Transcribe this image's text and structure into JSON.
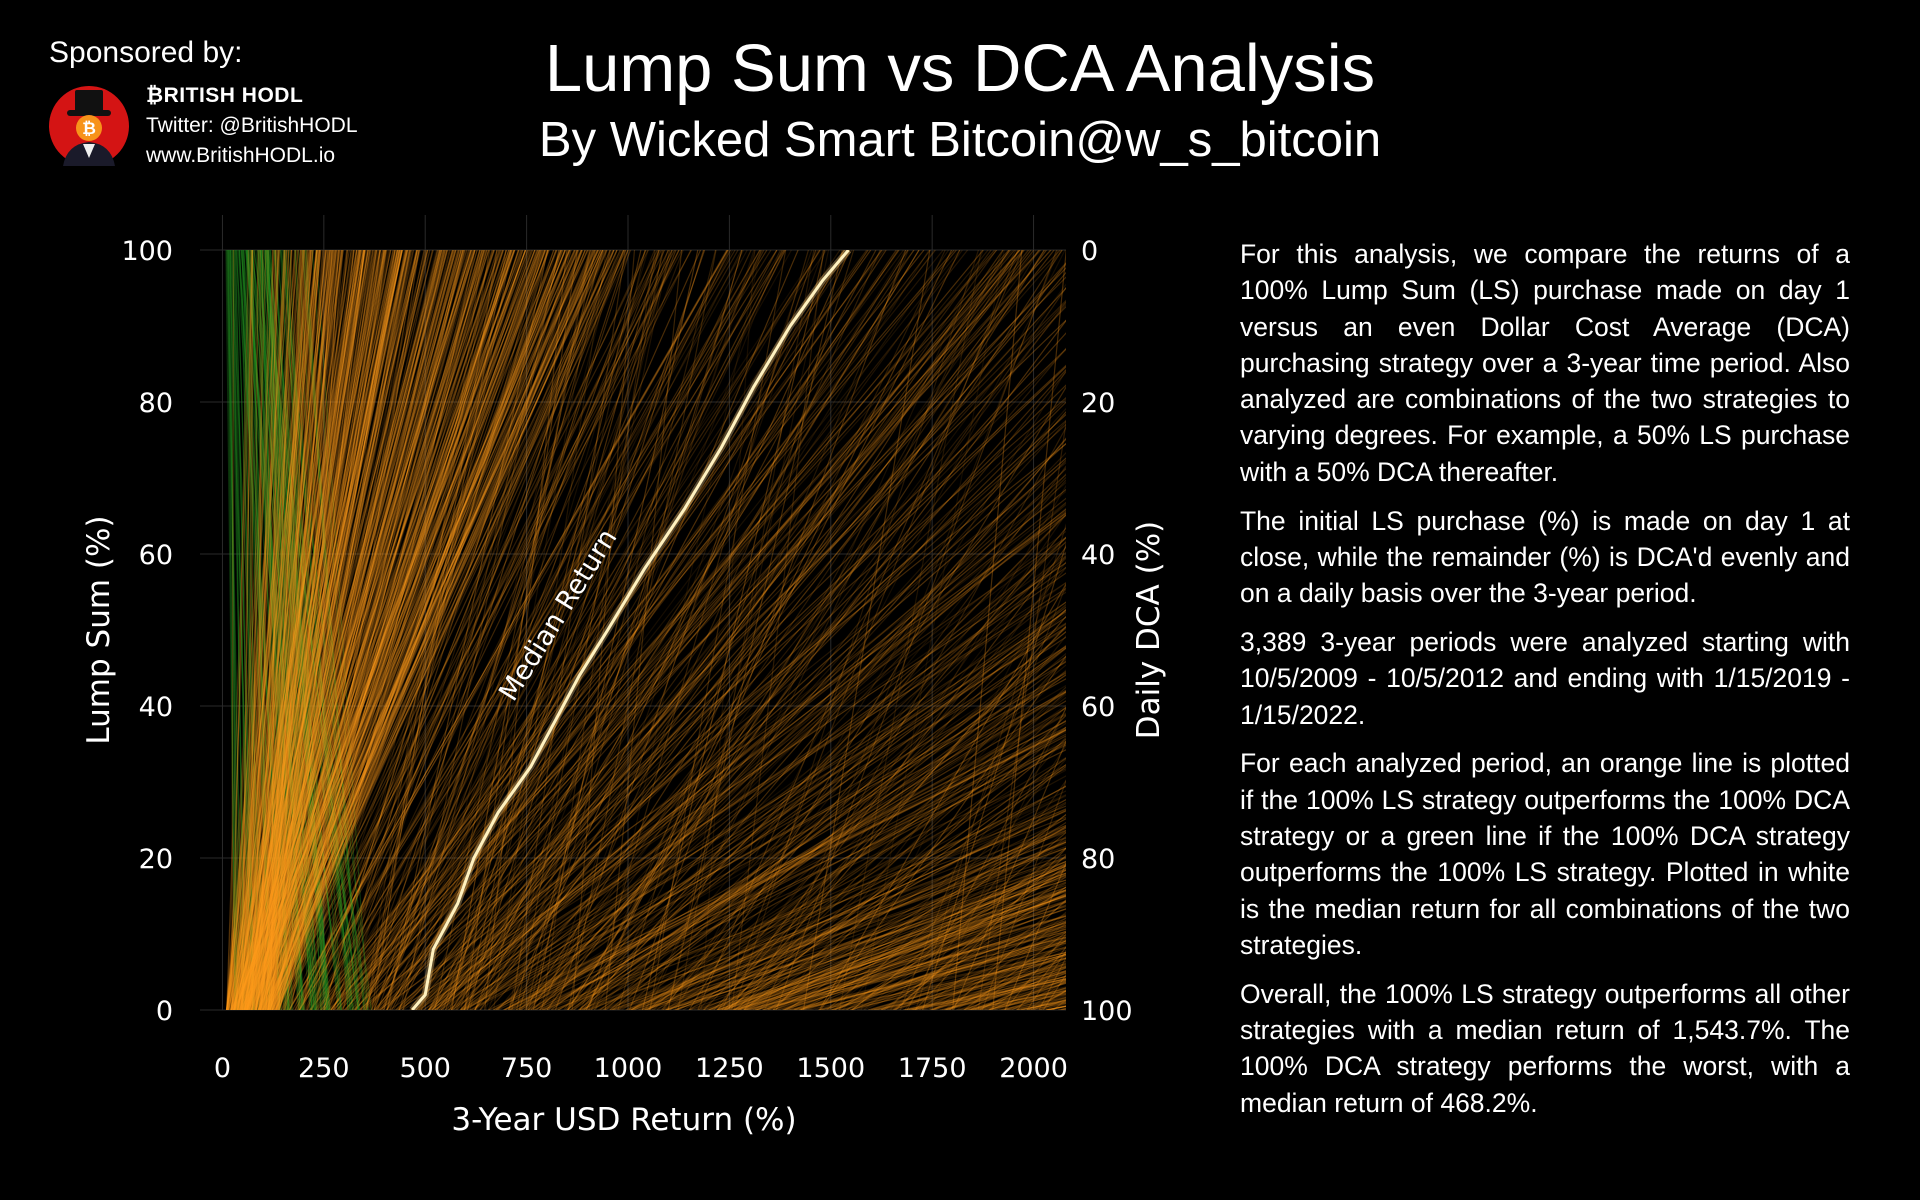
{
  "sponsor": {
    "label": "Sponsored by:",
    "name": "₿RITISH HODL",
    "twitter": "Twitter: @BritishHODL",
    "website": "www.BritishHODL.io",
    "logo_icon": "top-hat-bitcoin-avatar-icon"
  },
  "header": {
    "title": "Lump Sum vs DCA Analysis",
    "subtitle": "By Wicked Smart Bitcoin@w_s_bitcoin"
  },
  "description": [
    "For this analysis, we compare the returns of a 100% Lump Sum (LS) purchase made on day 1 versus an even Dollar Cost Average (DCA) purchasing strategy over a 3-year time period. Also analyzed are combinations of the two strategies to varying degrees. For example, a 50% LS purchase with a 50% DCA thereafter.",
    "The initial LS purchase (%) is made on day 1 at close, while the remainder (%) is DCA'd evenly and on a daily basis over the 3-year period.",
    "3,389 3-year periods were analyzed starting with 10/5/2009 - 10/5/2012 and ending with 1/15/2019 - 1/15/2022.",
    "For each analyzed period, an orange line is plotted if the 100% LS strategy outperforms the 100% DCA strategy or a green line if the 100% DCA strategy outperforms the 100% LS strategy. Plotted in white is the median return for all combinations of the two strategies.",
    "Overall, the 100% LS strategy outperforms all other strategies with a median return of 1,543.7%. The 100% DCA strategy performs the worst, with a median return of 468.2%."
  ],
  "chart_data": {
    "type": "line",
    "xlabel": "3-Year USD Return (%)",
    "ylabel": "Lump Sum (%)",
    "y2label": "Daily DCA (%)",
    "xlim": [
      -80,
      2080
    ],
    "ylim": [
      0,
      100
    ],
    "xticks": [
      0,
      250,
      500,
      750,
      1000,
      1250,
      1500,
      1750,
      2000
    ],
    "yticks": [
      0,
      20,
      40,
      60,
      80,
      100
    ],
    "y2ticks": [
      100,
      80,
      60,
      40,
      20,
      0
    ],
    "grid": true,
    "colors": {
      "ls_outperforms": "#ff9a1a",
      "dca_outperforms": "#1f8a1f",
      "median": "#fff2c0"
    },
    "annotation": {
      "text": "Median Return",
      "x": 920,
      "y": 49
    },
    "median_series": {
      "name": "Median Return",
      "points": [
        [
          468,
          0
        ],
        [
          500,
          2
        ],
        [
          520,
          8
        ],
        [
          560,
          12
        ],
        [
          580,
          14
        ],
        [
          620,
          20
        ],
        [
          680,
          26
        ],
        [
          760,
          32
        ],
        [
          820,
          38
        ],
        [
          880,
          44
        ],
        [
          950,
          50
        ],
        [
          1040,
          58
        ],
        [
          1140,
          66
        ],
        [
          1230,
          74
        ],
        [
          1310,
          82
        ],
        [
          1400,
          90
        ],
        [
          1480,
          96
        ],
        [
          1543.7,
          100
        ]
      ]
    },
    "periods_analyzed": 3389
  }
}
